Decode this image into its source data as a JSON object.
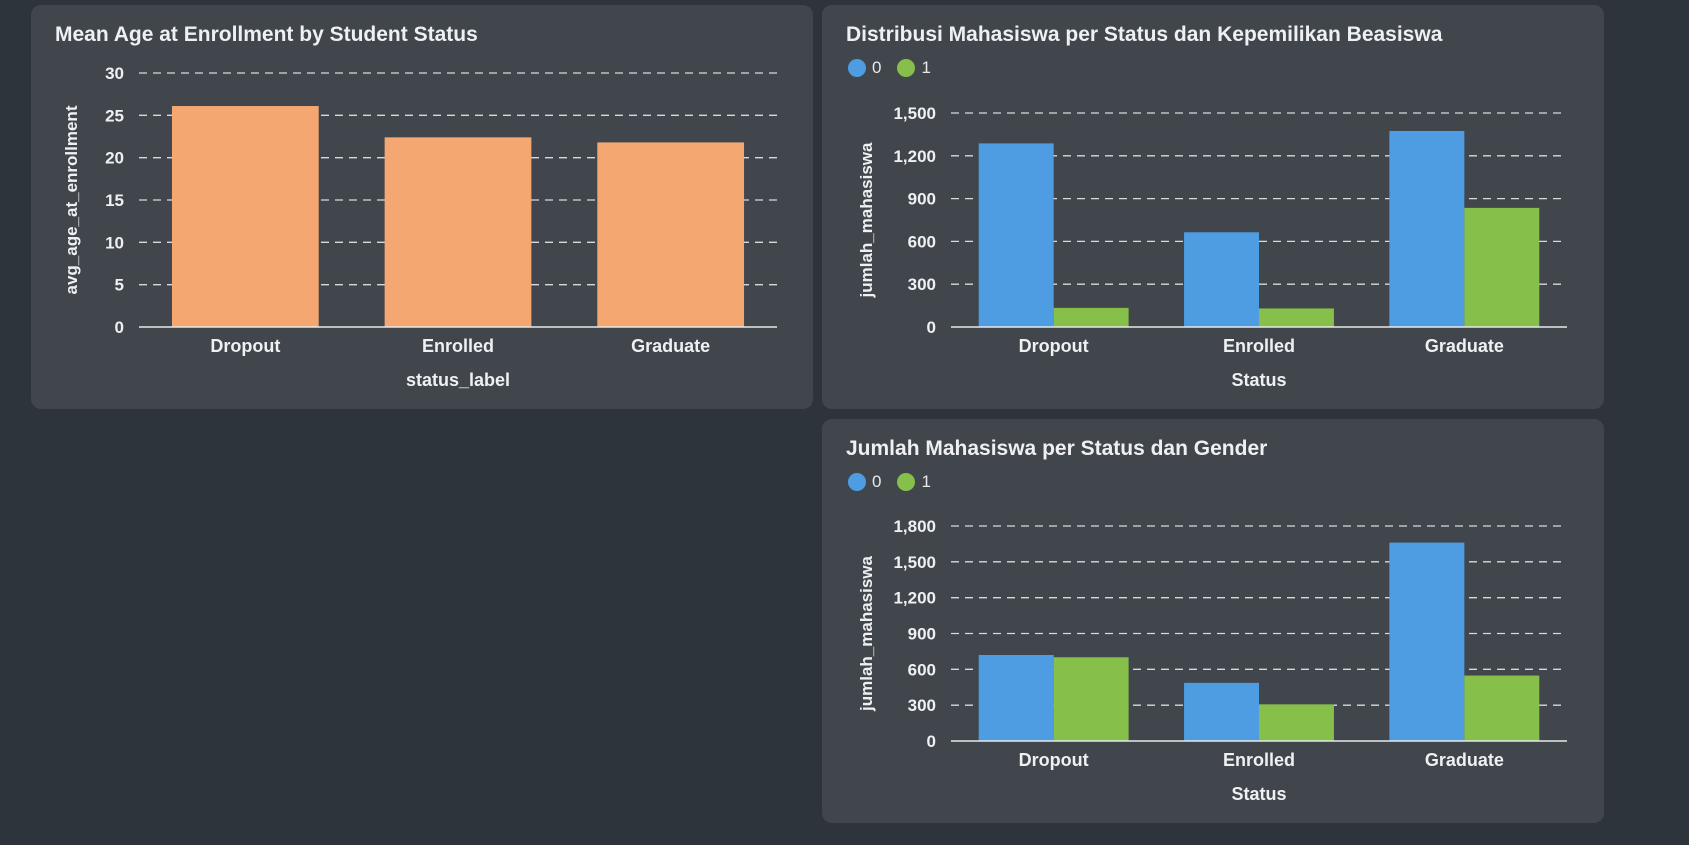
{
  "chart_data": [
    {
      "type": "bar",
      "title": "Mean Age at Enrollment by Student Status",
      "xlabel": "status_label",
      "ylabel": "avg_age_at_enrollment",
      "categories": [
        "Dropout",
        "Enrolled",
        "Graduate"
      ],
      "series": [
        {
          "values": [
            26.1,
            22.4,
            21.8
          ],
          "color": "#f4a771"
        }
      ],
      "ylim": [
        0,
        30
      ],
      "yticks": [
        0,
        5,
        10,
        15,
        20,
        25,
        30
      ],
      "ytick_labels": [
        "0",
        "5",
        "10",
        "15",
        "20",
        "25",
        "30"
      ],
      "grid": true
    },
    {
      "type": "bar",
      "title": "Distribusi Mahasiswa per Status dan Kepemilikan Beasiswa",
      "xlabel": "Status",
      "ylabel": "jumlah_mahasiswa",
      "categories": [
        "Dropout",
        "Enrolled",
        "Graduate"
      ],
      "series": [
        {
          "name": "0",
          "values": [
            1287,
            664,
            1374
          ],
          "color": "#4e9de3"
        },
        {
          "name": "1",
          "values": [
            134,
            130,
            835
          ],
          "color": "#86bf4a"
        }
      ],
      "ylim": [
        0,
        1500
      ],
      "yticks": [
        0,
        300,
        600,
        900,
        1200,
        1500
      ],
      "ytick_labels": [
        "0",
        "300",
        "600",
        "900",
        "1,200",
        "1,500"
      ],
      "grid": true,
      "legend": "top-left"
    },
    {
      "type": "bar",
      "title": "Jumlah Mahasiswa per Status dan Gender",
      "xlabel": "Status",
      "ylabel": "jumlah_mahasiswa",
      "categories": [
        "Dropout",
        "Enrolled",
        "Graduate"
      ],
      "series": [
        {
          "name": "0",
          "values": [
            720,
            487,
            1661
          ],
          "color": "#4e9de3"
        },
        {
          "name": "1",
          "values": [
            701,
            307,
            548
          ],
          "color": "#86bf4a"
        }
      ],
      "ylim": [
        0,
        1800
      ],
      "yticks": [
        0,
        300,
        600,
        900,
        1200,
        1500,
        1800
      ],
      "ytick_labels": [
        "0",
        "300",
        "600",
        "900",
        "1,200",
        "1,500",
        "1,800"
      ],
      "grid": true,
      "legend": "top-left"
    }
  ]
}
